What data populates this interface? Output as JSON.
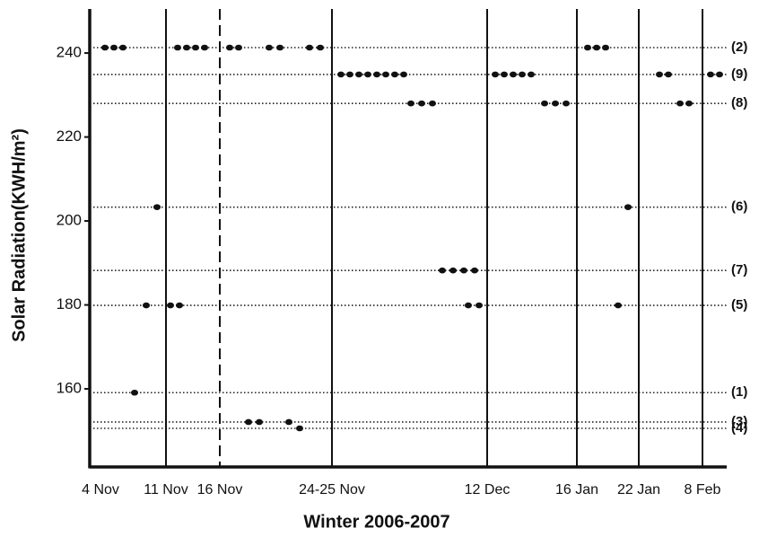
{
  "chart_data": {
    "type": "scatter",
    "x_label": "Winter 2006-2007",
    "y_label": "Solar Radiation(KWH/m²)",
    "color": "#111111",
    "xlim": [
      0,
      71
    ],
    "ylim": [
      141.4,
      250.5
    ],
    "yticks": [
      160,
      180,
      200,
      220,
      240
    ],
    "xticks": [
      {
        "value": 1.2,
        "label": "4 Nov"
      },
      {
        "value": 8.5,
        "label": "11 Nov"
      },
      {
        "value": 14.5,
        "label": "16 Nov"
      },
      {
        "value": 27,
        "label": "24-25 Nov"
      },
      {
        "value": 44.3,
        "label": "12 Dec"
      },
      {
        "value": 54.3,
        "label": "16 Jan"
      },
      {
        "value": 61.2,
        "label": "22 Jan"
      },
      {
        "value": 68.3,
        "label": "8 Feb"
      }
    ],
    "reference_lines": [
      {
        "value": 241.3,
        "label": "(2)"
      },
      {
        "value": 234.9,
        "label": "(9)"
      },
      {
        "value": 228,
        "label": "(8)"
      },
      {
        "value": 203.3,
        "label": "(6)"
      },
      {
        "value": 188.2,
        "label": "(7)"
      },
      {
        "value": 179.9,
        "label": "(5)"
      },
      {
        "value": 159.1,
        "label": "(1)"
      },
      {
        "value": 152.1,
        "label": "(3)"
      },
      {
        "value": 150.6,
        "label": "(4)"
      }
    ],
    "x": [
      1.7,
      2.7,
      3.7,
      9.8,
      10.8,
      11.8,
      12.8,
      15.6,
      16.6,
      20,
      21.2,
      24.5,
      25.7,
      55.5,
      56.5,
      57.5,
      28,
      29,
      30,
      31,
      32,
      33,
      34,
      35,
      45.2,
      46.2,
      47.2,
      48.2,
      49.2,
      63.5,
      64.5,
      69.2,
      70.2,
      35.8,
      37,
      38.2,
      50.7,
      51.9,
      53.1,
      65.8,
      66.8,
      7.5,
      60,
      39.3,
      40.5,
      41.7,
      42.9,
      6.3,
      9,
      10,
      42.2,
      43.4,
      58.9,
      5,
      17.7,
      18.9,
      22.2,
      23.4
    ],
    "values": [
      241.3,
      241.3,
      241.3,
      241.3,
      241.3,
      241.3,
      241.3,
      241.3,
      241.3,
      241.3,
      241.3,
      241.3,
      241.3,
      241.3,
      241.3,
      241.3,
      234.9,
      234.9,
      234.9,
      234.9,
      234.9,
      234.9,
      234.9,
      234.9,
      234.9,
      234.9,
      234.9,
      234.9,
      234.9,
      234.9,
      234.9,
      234.9,
      234.9,
      228,
      228,
      228,
      228,
      228,
      228,
      228,
      228,
      203.3,
      203.3,
      188.2,
      188.2,
      188.2,
      188.2,
      179.9,
      179.9,
      179.9,
      179.9,
      179.9,
      179.9,
      159.1,
      152.1,
      152.1,
      152.1,
      150.6
    ]
  }
}
